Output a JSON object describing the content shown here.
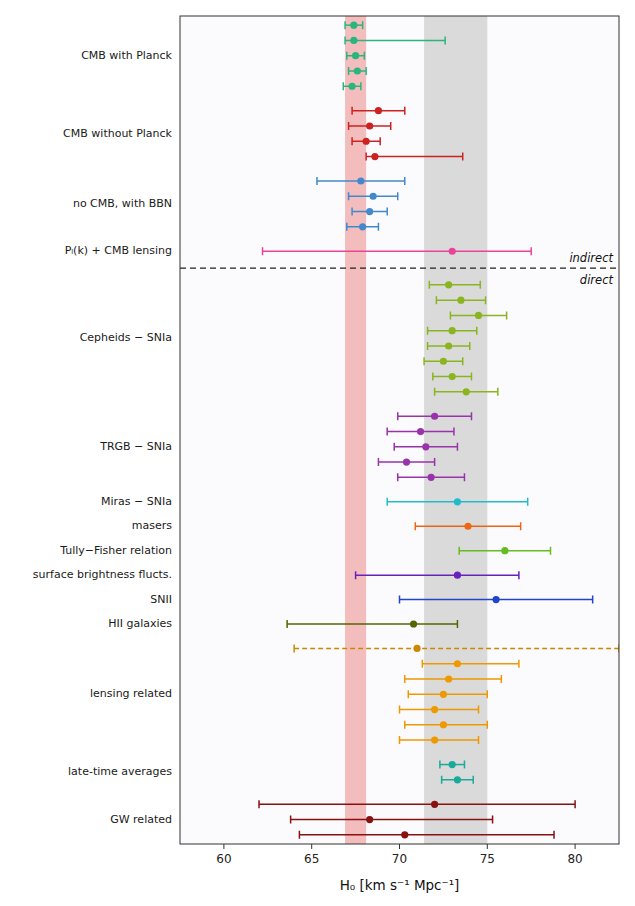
{
  "chart_data": {
    "type": "errorbar",
    "xlabel": "H₀ [km s⁻¹ Mpc⁻¹]",
    "xlim": [
      57.5,
      82.5
    ],
    "xticks": [
      60,
      65,
      70,
      75,
      80
    ],
    "bands": [
      {
        "center": 73.2,
        "half_width": 1.8,
        "color": "#c0c0c0"
      },
      {
        "center": 67.5,
        "half_width": 0.6,
        "color": "#e87070"
      }
    ],
    "sections": [
      {
        "label": "indirect",
        "groups": [
          {
            "label": "CMB with Planck",
            "points": [
              {
                "value": 67.4,
                "error_low": 0.5,
                "error_high": 0.5,
                "color": "#2ab57d"
              },
              {
                "value": 67.4,
                "error_low": 0.5,
                "error_high": 5.2,
                "color": "#2ab57d"
              },
              {
                "value": 67.5,
                "error_low": 0.5,
                "error_high": 0.5,
                "color": "#2ab57d"
              },
              {
                "value": 67.6,
                "error_low": 0.5,
                "error_high": 0.5,
                "color": "#2ab57d"
              },
              {
                "value": 67.3,
                "error_low": 0.5,
                "error_high": 0.5,
                "color": "#2ab57d"
              }
            ]
          },
          {
            "label": "CMB without Planck",
            "points": [
              {
                "value": 68.8,
                "error_low": 1.5,
                "error_high": 1.5,
                "color": "#cc2222"
              },
              {
                "value": 68.3,
                "error_low": 1.2,
                "error_high": 1.2,
                "color": "#cc2222"
              },
              {
                "value": 68.1,
                "error_low": 0.8,
                "error_high": 0.8,
                "color": "#cc2222"
              },
              {
                "value": 68.6,
                "error_low": 0.5,
                "error_high": 5.0,
                "color": "#cc2222"
              }
            ]
          },
          {
            "label": "no CMB, with BBN",
            "points": [
              {
                "value": 67.8,
                "error_low": 2.5,
                "error_high": 2.5,
                "color": "#4488cc"
              },
              {
                "value": 68.5,
                "error_low": 1.4,
                "error_high": 1.4,
                "color": "#4488cc"
              },
              {
                "value": 68.3,
                "error_low": 1.0,
                "error_high": 1.0,
                "color": "#4488cc"
              },
              {
                "value": 67.9,
                "error_low": 0.9,
                "error_high": 0.9,
                "color": "#4488cc"
              }
            ]
          },
          {
            "label": "Pₗ(k) + CMB lensing",
            "points": [
              {
                "value": 73.0,
                "error_low": 10.8,
                "error_high": 4.5,
                "color": "#e8449a"
              }
            ]
          }
        ]
      },
      {
        "label": "direct",
        "groups": [
          {
            "label": "Cepheids − SNIa",
            "points": [
              {
                "value": 72.8,
                "error_low": 1.1,
                "error_high": 1.8,
                "color": "#8ab520"
              },
              {
                "value": 73.5,
                "error_low": 1.4,
                "error_high": 1.4,
                "color": "#8ab520"
              },
              {
                "value": 74.5,
                "error_low": 1.6,
                "error_high": 1.6,
                "color": "#8ab520"
              },
              {
                "value": 73.0,
                "error_low": 1.4,
                "error_high": 1.4,
                "color": "#8ab520"
              },
              {
                "value": 72.8,
                "error_low": 1.2,
                "error_high": 1.2,
                "color": "#8ab520"
              },
              {
                "value": 72.5,
                "error_low": 1.1,
                "error_high": 1.1,
                "color": "#8ab520"
              },
              {
                "value": 73.0,
                "error_low": 1.1,
                "error_high": 1.1,
                "color": "#8ab520"
              },
              {
                "value": 73.8,
                "error_low": 1.8,
                "error_high": 1.8,
                "color": "#8ab520"
              }
            ]
          },
          {
            "label": "TRGB − SNIa",
            "points": [
              {
                "value": 72.0,
                "error_low": 2.1,
                "error_high": 2.1,
                "color": "#9933aa"
              },
              {
                "value": 71.2,
                "error_low": 1.9,
                "error_high": 1.9,
                "color": "#9933aa"
              },
              {
                "value": 71.5,
                "error_low": 1.8,
                "error_high": 1.8,
                "color": "#9933aa"
              },
              {
                "value": 70.4,
                "error_low": 1.6,
                "error_high": 1.6,
                "color": "#9933aa"
              },
              {
                "value": 71.8,
                "error_low": 1.9,
                "error_high": 1.9,
                "color": "#9933aa"
              }
            ]
          },
          {
            "label": "Miras − SNIa",
            "points": [
              {
                "value": 73.3,
                "error_low": 4.0,
                "error_high": 4.0,
                "color": "#22bbcc"
              }
            ]
          },
          {
            "label": "masers",
            "points": [
              {
                "value": 73.9,
                "error_low": 3.0,
                "error_high": 3.0,
                "color": "#ee6611"
              }
            ]
          },
          {
            "label": "Tully−Fisher relation",
            "points": [
              {
                "value": 76.0,
                "error_low": 2.6,
                "error_high": 2.6,
                "color": "#66bb22"
              }
            ]
          },
          {
            "label": "surface brightness flucts.",
            "points": [
              {
                "value": 73.3,
                "error_low": 5.8,
                "error_high": 3.5,
                "color": "#6622bb"
              }
            ]
          },
          {
            "label": "SNII",
            "points": [
              {
                "value": 75.5,
                "error_low": 5.5,
                "error_high": 5.5,
                "color": "#2244cc"
              }
            ]
          },
          {
            "label": "HII galaxies",
            "points": [
              {
                "value": 70.8,
                "error_low": 7.2,
                "error_high": 2.5,
                "color": "#556600"
              }
            ]
          },
          {
            "label": "lensing related",
            "points": [
              {
                "value": 71.0,
                "error_low": 7.0,
                "error_high": 11.5,
                "color": "#cc8800",
                "line_style": "dashed"
              },
              {
                "value": 73.3,
                "error_low": 2.0,
                "error_high": 3.5,
                "color": "#ee9900"
              },
              {
                "value": 72.8,
                "error_low": 2.5,
                "error_high": 3.0,
                "color": "#ee9900"
              },
              {
                "value": 72.5,
                "error_low": 2.0,
                "error_high": 2.5,
                "color": "#ee9900"
              },
              {
                "value": 72.0,
                "error_low": 2.0,
                "error_high": 2.5,
                "color": "#ee9900"
              },
              {
                "value": 72.5,
                "error_low": 2.2,
                "error_high": 2.5,
                "color": "#ee9900"
              },
              {
                "value": 72.0,
                "error_low": 2.0,
                "error_high": 2.5,
                "color": "#ee9900"
              }
            ]
          },
          {
            "label": "late-time averages",
            "points": [
              {
                "value": 73.0,
                "error_low": 0.7,
                "error_high": 0.7,
                "color": "#1aaa99"
              },
              {
                "value": 73.3,
                "error_low": 0.9,
                "error_high": 0.9,
                "color": "#1aaa99"
              }
            ]
          },
          {
            "label": "GW related",
            "points": [
              {
                "value": 72.0,
                "error_low": 10.0,
                "error_high": 8.0,
                "color": "#881111"
              },
              {
                "value": 68.3,
                "error_low": 4.5,
                "error_high": 7.0,
                "color": "#881111"
              },
              {
                "value": 70.3,
                "error_low": 6.0,
                "error_high": 8.5,
                "color": "#881111"
              }
            ]
          }
        ]
      }
    ]
  }
}
